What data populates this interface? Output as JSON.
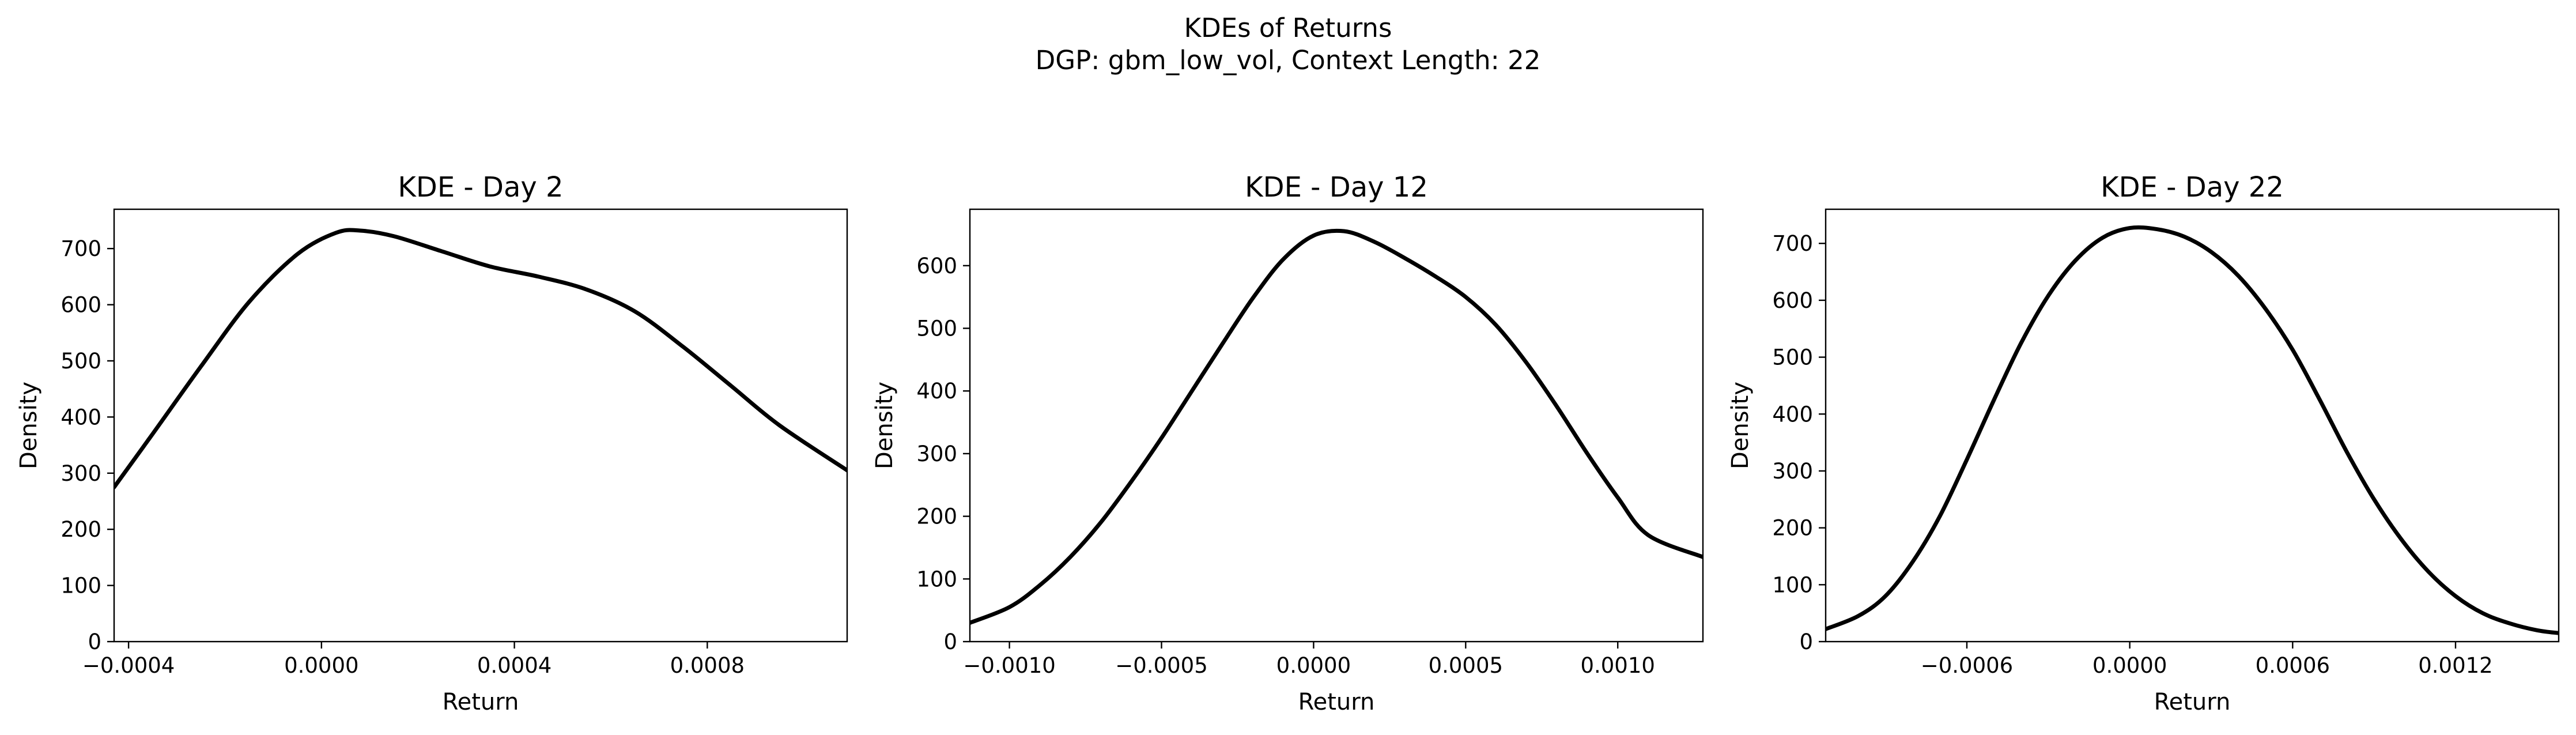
{
  "figure": {
    "suptitle_line1": "KDEs of Returns",
    "suptitle_line2": "DGP: gbm_low_vol, Context Length: 22"
  },
  "chart_data": [
    {
      "type": "line",
      "title": "KDE - Day 2",
      "xlabel": "Return",
      "ylabel": "Density",
      "xlim": [
        -0.00043,
        0.00109
      ],
      "ylim": [
        0,
        770
      ],
      "xticks": [
        -0.0004,
        0.0,
        0.0004,
        0.0008
      ],
      "xtick_labels": [
        "−0.0004",
        "0.0000",
        "0.0004",
        "0.0008"
      ],
      "yticks": [
        0,
        100,
        200,
        300,
        400,
        500,
        600,
        700
      ],
      "ytick_labels": [
        "0",
        "100",
        "200",
        "300",
        "400",
        "500",
        "600",
        "700"
      ],
      "grid": false,
      "line_color": "#000000",
      "series": [
        {
          "x": [
            -0.00043,
            -0.00035,
            -0.00025,
            -0.00015,
            -5e-05,
            3e-05,
            8e-05,
            0.00015,
            0.00025,
            0.00035,
            0.00045,
            0.00055,
            0.00065,
            0.00075,
            0.00085,
            0.00095,
            0.00109
          ],
          "y": [
            275,
            370,
            490,
            605,
            690,
            728,
            732,
            722,
            695,
            668,
            650,
            627,
            588,
            525,
            455,
            385,
            305
          ]
        }
      ]
    },
    {
      "type": "line",
      "title": "KDE - Day 12",
      "xlabel": "Return",
      "ylabel": "Density",
      "xlim": [
        -0.00113,
        0.00128
      ],
      "ylim": [
        0,
        690
      ],
      "xticks": [
        -0.001,
        -0.0005,
        0.0,
        0.0005,
        0.001
      ],
      "xtick_labels": [
        "−0.0010",
        "−0.0005",
        "0.0000",
        "0.0005",
        "0.0010"
      ],
      "yticks": [
        0,
        100,
        200,
        300,
        400,
        500,
        600
      ],
      "ytick_labels": [
        "0",
        "100",
        "200",
        "300",
        "400",
        "500",
        "600"
      ],
      "grid": false,
      "line_color": "#000000",
      "series": [
        {
          "x": [
            -0.00113,
            -0.001,
            -0.0009,
            -0.0008,
            -0.0007,
            -0.0006,
            -0.0005,
            -0.0004,
            -0.0003,
            -0.0002,
            -0.0001,
            0.0,
            0.0001,
            0.0002,
            0.0003,
            0.0004,
            0.0005,
            0.0006,
            0.0007,
            0.0008,
            0.0009,
            0.001,
            0.0011,
            0.00128
          ],
          "y": [
            30,
            55,
            90,
            135,
            190,
            255,
            325,
            400,
            475,
            548,
            610,
            648,
            655,
            638,
            612,
            583,
            550,
            505,
            445,
            375,
            300,
            230,
            170,
            135
          ]
        }
      ]
    },
    {
      "type": "line",
      "title": "KDE - Day 22",
      "xlabel": "Return",
      "ylabel": "Density",
      "xlim": [
        -0.00112,
        0.00158
      ],
      "ylim": [
        0,
        760
      ],
      "xticks": [
        -0.0006,
        0.0,
        0.0006,
        0.0012
      ],
      "xtick_labels": [
        "−0.0006",
        "0.0000",
        "0.0006",
        "0.0012"
      ],
      "yticks": [
        0,
        100,
        200,
        300,
        400,
        500,
        600,
        700
      ],
      "ytick_labels": [
        "0",
        "100",
        "200",
        "300",
        "400",
        "500",
        "600",
        "700"
      ],
      "grid": false,
      "line_color": "#000000",
      "series": [
        {
          "x": [
            -0.00112,
            -0.001,
            -0.0009,
            -0.0008,
            -0.0007,
            -0.0006,
            -0.0005,
            -0.0004,
            -0.0003,
            -0.0002,
            -0.0001,
            0.0,
            0.0001,
            0.0002,
            0.0003,
            0.0004,
            0.0005,
            0.0006,
            0.0007,
            0.0008,
            0.0009,
            0.001,
            0.0011,
            0.0012,
            0.0013,
            0.0014,
            0.0015,
            0.00158
          ],
          "y": [
            22,
            45,
            80,
            140,
            220,
            320,
            425,
            525,
            608,
            670,
            710,
            727,
            725,
            712,
            685,
            643,
            585,
            513,
            425,
            333,
            250,
            180,
            123,
            80,
            50,
            32,
            20,
            15
          ]
        }
      ]
    }
  ]
}
